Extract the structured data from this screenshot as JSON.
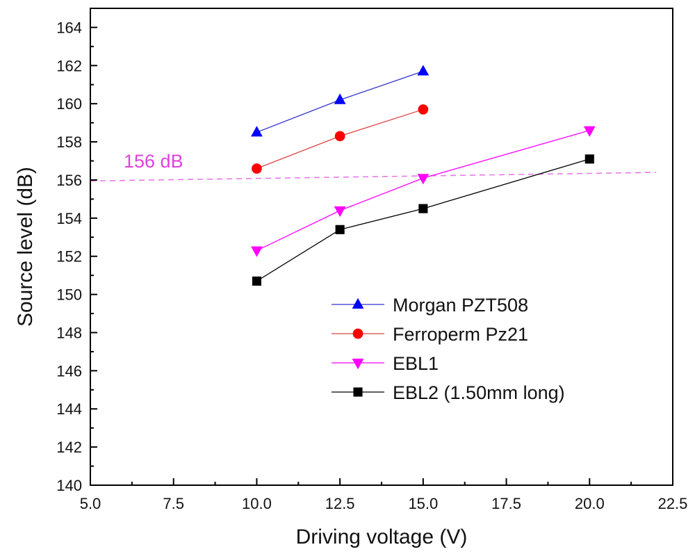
{
  "chart_data": {
    "type": "line",
    "title": "",
    "xlabel": "Driving voltage (V)",
    "ylabel": "Source level (dB)",
    "xlim": [
      5.0,
      22.5
    ],
    "ylim": [
      140,
      165
    ],
    "xticks": [
      "5.0",
      "7.5",
      "10.0",
      "12.5",
      "15.0",
      "17.5",
      "20.0",
      "22.5"
    ],
    "yticks": [
      "140",
      "142",
      "144",
      "146",
      "148",
      "150",
      "152",
      "154",
      "156",
      "158",
      "160",
      "162",
      "164"
    ],
    "grid": false,
    "legend_position": "bottom-right",
    "series": [
      {
        "name": "Morgan PZT508",
        "marker": "triangle-up",
        "color": "#0000ff",
        "line_color": "#3333cc",
        "x": [
          10.0,
          12.5,
          15.0
        ],
        "y": [
          158.5,
          160.2,
          161.7
        ]
      },
      {
        "name": "Ferroperm Pz21",
        "marker": "circle",
        "color": "#ff0000",
        "line_color": "#e04040",
        "x": [
          10.0,
          12.5,
          15.0
        ],
        "y": [
          156.6,
          158.3,
          159.7
        ]
      },
      {
        "name": "EBL1",
        "marker": "triangle-down",
        "color": "#ff00ff",
        "line_color": "#ff00ff",
        "x": [
          10.0,
          12.5,
          15.0,
          20.0
        ],
        "y": [
          152.3,
          154.4,
          156.1,
          158.6
        ]
      },
      {
        "name": "EBL2 (1.50mm long)",
        "marker": "square",
        "color": "#000000",
        "line_color": "#000000",
        "x": [
          10.0,
          12.5,
          20.0
        ],
        "y": [
          150.7,
          153.4,
          157.1
        ],
        "x_full": [
          10.0,
          12.5,
          15.0,
          20.0
        ],
        "y_full": [
          150.7,
          153.4,
          154.5,
          157.1
        ]
      }
    ],
    "annotations": [
      {
        "text": "156 dB",
        "color": "#e040e0"
      }
    ],
    "reference_line": {
      "style": "dashed",
      "color": "#e878e8",
      "x": [
        5.0,
        22.0
      ],
      "y": [
        155.95,
        156.4
      ]
    }
  }
}
